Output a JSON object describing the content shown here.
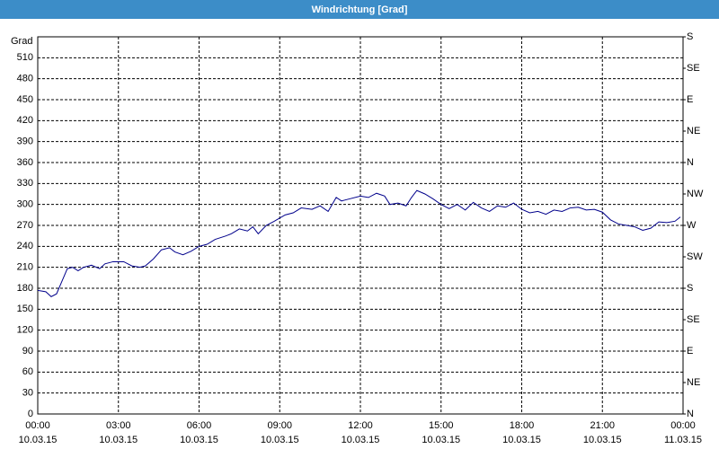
{
  "chart_data": {
    "type": "line",
    "title": "Windrichtung [Grad]",
    "y_label": "Grad",
    "x": [
      0,
      0.3,
      0.5,
      0.7,
      0.9,
      1.1,
      1.3,
      1.5,
      1.7,
      2.0,
      2.3,
      2.5,
      2.8,
      3.2,
      3.5,
      3.8,
      4.0,
      4.3,
      4.6,
      4.9,
      5.1,
      5.4,
      5.7,
      6.0,
      6.3,
      6.6,
      7.0,
      7.2,
      7.5,
      7.8,
      8.0,
      8.2,
      8.5,
      8.8,
      9.2,
      9.5,
      9.8,
      10.2,
      10.5,
      10.8,
      11.1,
      11.3,
      11.6,
      12.0,
      12.3,
      12.6,
      12.9,
      13.1,
      13.4,
      13.7,
      13.9,
      14.1,
      14.4,
      14.7,
      15.0,
      15.3,
      15.6,
      15.9,
      16.2,
      16.5,
      16.8,
      17.1,
      17.4,
      17.7,
      18.0,
      18.3,
      18.6,
      18.9,
      19.2,
      19.5,
      19.8,
      20.1,
      20.4,
      20.7,
      21.0,
      21.3,
      21.6,
      21.9,
      22.2,
      22.5,
      22.8,
      23.1,
      23.4,
      23.7,
      23.9
    ],
    "series": [
      {
        "name": "Windrichtung",
        "color": "#00008b",
        "values": [
          177,
          175,
          168,
          172,
          190,
          208,
          210,
          205,
          210,
          213,
          208,
          215,
          218,
          218,
          212,
          210,
          212,
          222,
          235,
          238,
          232,
          228,
          233,
          240,
          243,
          250,
          255,
          258,
          265,
          262,
          268,
          258,
          270,
          276,
          285,
          288,
          295,
          293,
          298,
          290,
          310,
          305,
          308,
          312,
          310,
          316,
          312,
          300,
          302,
          298,
          310,
          320,
          315,
          308,
          300,
          294,
          300,
          292,
          303,
          295,
          290,
          298,
          296,
          302,
          293,
          288,
          290,
          286,
          292,
          290,
          295,
          296,
          292,
          293,
          289,
          278,
          272,
          270,
          268,
          263,
          266,
          275,
          274,
          276,
          282
        ]
      }
    ],
    "xlim": [
      0,
      24
    ],
    "xticks": [
      {
        "value": 0,
        "label": "00:00 10.03.15"
      },
      {
        "value": 3,
        "label": "03:00 10.03.15"
      },
      {
        "value": 6,
        "label": "06:00 10.03.15"
      },
      {
        "value": 9,
        "label": "09:00 10.03.15"
      },
      {
        "value": 12,
        "label": "12:00 10.03.15"
      },
      {
        "value": 15,
        "label": "15:00 10.03.15"
      },
      {
        "value": 18,
        "label": "18:00 10.03.15"
      },
      {
        "value": 21,
        "label": "21:00 10.03.15"
      },
      {
        "value": 24,
        "label": "00:00 11.03.15"
      }
    ],
    "ylim": [
      0,
      540
    ],
    "yticks": [
      0,
      30,
      60,
      90,
      120,
      150,
      180,
      210,
      240,
      270,
      300,
      330,
      360,
      390,
      420,
      450,
      480,
      510
    ],
    "y2lim": [
      0,
      540
    ],
    "y2ticks": [
      {
        "value": 0,
        "label": "N"
      },
      {
        "value": 45,
        "label": "NE"
      },
      {
        "value": 90,
        "label": "E"
      },
      {
        "value": 135,
        "label": "SE"
      },
      {
        "value": 180,
        "label": "S"
      },
      {
        "value": 225,
        "label": "SW"
      },
      {
        "value": 270,
        "label": "W"
      },
      {
        "value": 315,
        "label": "NW"
      },
      {
        "value": 360,
        "label": "N"
      },
      {
        "value": 405,
        "label": "NE"
      },
      {
        "value": 450,
        "label": "E"
      },
      {
        "value": 495,
        "label": "SE"
      },
      {
        "value": 540,
        "label": "S"
      }
    ],
    "grid": true
  }
}
